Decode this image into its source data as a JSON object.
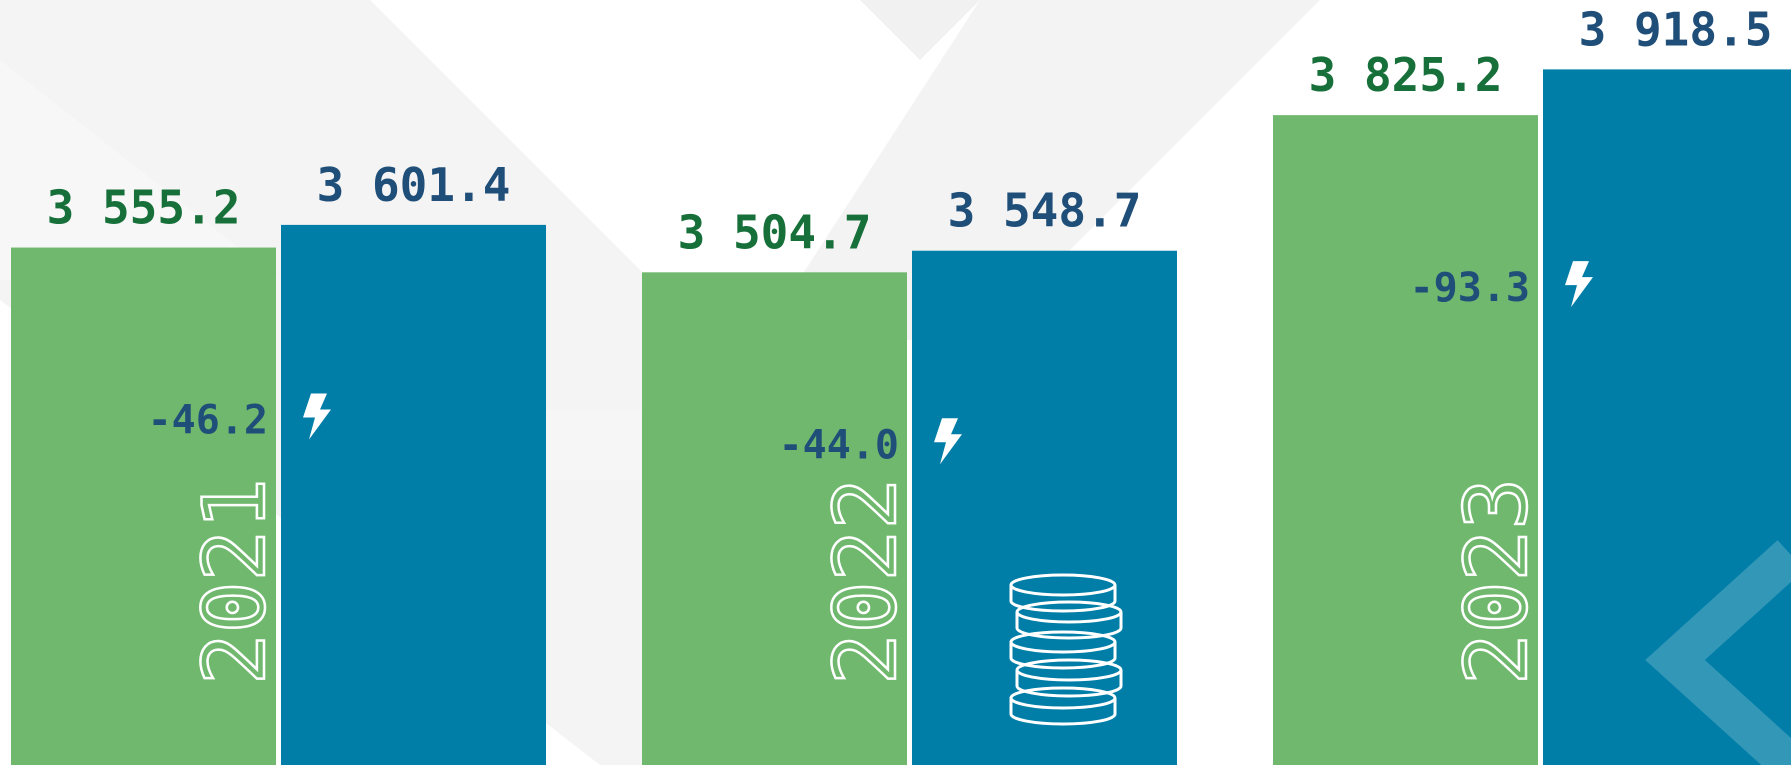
{
  "chart_data": {
    "type": "bar",
    "categories": [
      "2021",
      "2022",
      "2023"
    ],
    "series": [
      {
        "color": "#70b86e",
        "label_color": "#17703a",
        "values": [
          3555.2,
          3504.7,
          3825.2
        ],
        "value_labels": [
          "3 555.2",
          "3 504.7",
          "3 825.2"
        ]
      },
      {
        "color": "#007ea7",
        "label_color": "#1f4e79",
        "values": [
          3601.4,
          3548.7,
          3918.5
        ],
        "value_labels": [
          "3 601.4",
          "3 548.7",
          "3 918.5"
        ]
      }
    ],
    "differences": {
      "values": [
        -46.2,
        -44.0,
        -93.3
      ],
      "value_labels": [
        "-46.2",
        "-44.0",
        "-93.3"
      ]
    },
    "ylim": [
      2500,
      4060
    ]
  }
}
